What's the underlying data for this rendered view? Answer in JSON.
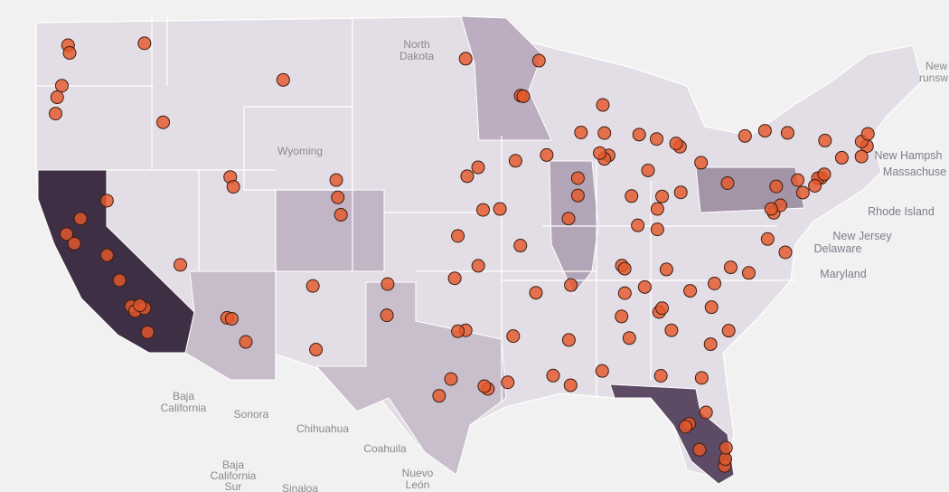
{
  "map": {
    "labels": [
      [
        "North",
        "Dakota"
      ],
      [
        "Wyoming"
      ],
      [
        "New Hampsh"
      ],
      [
        "Massachuse"
      ],
      [
        "Rhode Island"
      ],
      [
        "New Jersey"
      ],
      [
        "Delaware"
      ],
      [
        "Maryland"
      ],
      [
        "New",
        "runsw"
      ],
      [
        "Baja",
        "California"
      ],
      [
        "Sonora"
      ],
      [
        "Chihuahua"
      ],
      [
        "Coahuila"
      ],
      [
        "Baja",
        "California",
        "Sur"
      ],
      [
        "Nuevo",
        "León"
      ],
      [
        "Sinaloa"
      ]
    ],
    "locations": [
      {
        "lon": -122.3,
        "lat": 47.6
      },
      {
        "lon": -122.2,
        "lat": 47.2
      },
      {
        "lon": -122.7,
        "lat": 45.5
      },
      {
        "lon": -123.0,
        "lat": 44.9
      },
      {
        "lon": -117.4,
        "lat": 47.7
      },
      {
        "lon": -116.2,
        "lat": 43.6
      },
      {
        "lon": -123.1,
        "lat": 44.05
      },
      {
        "lon": -122.4,
        "lat": 37.8
      },
      {
        "lon": -121.9,
        "lat": 37.3
      },
      {
        "lon": -121.5,
        "lat": 38.6
      },
      {
        "lon": -119.8,
        "lat": 36.7
      },
      {
        "lon": -118.25,
        "lat": 34.05
      },
      {
        "lon": -118.0,
        "lat": 33.8
      },
      {
        "lon": -117.2,
        "lat": 32.7
      },
      {
        "lon": -117.4,
        "lat": 33.95
      },
      {
        "lon": -119.0,
        "lat": 35.4
      },
      {
        "lon": -117.7,
        "lat": 34.1
      },
      {
        "lon": -119.81,
        "lat": 39.53
      },
      {
        "lon": -115.1,
        "lat": 36.2
      },
      {
        "lon": -112.1,
        "lat": 33.45
      },
      {
        "lon": -111.8,
        "lat": 33.4
      },
      {
        "lon": -110.9,
        "lat": 32.2
      },
      {
        "lon": -111.9,
        "lat": 40.76
      },
      {
        "lon": -111.7,
        "lat": 40.25
      },
      {
        "lon": -105.0,
        "lat": 39.7
      },
      {
        "lon": -104.8,
        "lat": 38.8
      },
      {
        "lon": -105.1,
        "lat": 40.6
      },
      {
        "lon": -106.6,
        "lat": 35.1
      },
      {
        "lon": -106.4,
        "lat": 31.8
      },
      {
        "lon": -108.5,
        "lat": 45.8
      },
      {
        "lon": -96.8,
        "lat": 32.8
      },
      {
        "lon": -97.3,
        "lat": 32.75
      },
      {
        "lon": -95.37,
        "lat": 29.76
      },
      {
        "lon": -95.6,
        "lat": 29.9
      },
      {
        "lon": -98.5,
        "lat": 29.4
      },
      {
        "lon": -97.74,
        "lat": 30.27
      },
      {
        "lon": -101.85,
        "lat": 33.58
      },
      {
        "lon": -101.8,
        "lat": 35.2
      },
      {
        "lon": -94.1,
        "lat": 30.1
      },
      {
        "lon": -97.5,
        "lat": 35.5
      },
      {
        "lon": -95.99,
        "lat": 36.15
      },
      {
        "lon": -97.3,
        "lat": 37.7
      },
      {
        "lon": -94.6,
        "lat": 39.1
      },
      {
        "lon": -95.68,
        "lat": 39.05
      },
      {
        "lon": -96.0,
        "lat": 41.26
      },
      {
        "lon": -96.7,
        "lat": 40.8
      },
      {
        "lon": -96.8,
        "lat": 46.9
      },
      {
        "lon": -93.27,
        "lat": 44.98
      },
      {
        "lon": -93.1,
        "lat": 44.95
      },
      {
        "lon": -92.1,
        "lat": 46.8
      },
      {
        "lon": -93.6,
        "lat": 41.6
      },
      {
        "lon": -91.6,
        "lat": 41.9
      },
      {
        "lon": -93.29,
        "lat": 37.2
      },
      {
        "lon": -90.2,
        "lat": 38.6
      },
      {
        "lon": -87.63,
        "lat": 41.88
      },
      {
        "lon": -87.9,
        "lat": 41.7
      },
      {
        "lon": -88.2,
        "lat": 42.0
      },
      {
        "lon": -87.9,
        "lat": 43.04
      },
      {
        "lon": -89.4,
        "lat": 43.07
      },
      {
        "lon": -88.0,
        "lat": 44.5
      },
      {
        "lon": -89.6,
        "lat": 39.8
      },
      {
        "lon": -89.6,
        "lat": 40.7
      },
      {
        "lon": -83.05,
        "lat": 42.33
      },
      {
        "lon": -83.3,
        "lat": 42.5
      },
      {
        "lon": -85.67,
        "lat": 42.96
      },
      {
        "lon": -84.55,
        "lat": 42.73
      },
      {
        "lon": -86.16,
        "lat": 39.77
      },
      {
        "lon": -85.1,
        "lat": 41.1
      },
      {
        "lon": -83.0,
        "lat": 39.96
      },
      {
        "lon": -81.7,
        "lat": 41.5
      },
      {
        "lon": -84.5,
        "lat": 39.1
      },
      {
        "lon": -84.2,
        "lat": 39.75
      },
      {
        "lon": -80.0,
        "lat": 40.44
      },
      {
        "lon": -85.76,
        "lat": 38.25
      },
      {
        "lon": -84.5,
        "lat": 38.04
      },
      {
        "lon": -86.78,
        "lat": 36.16
      },
      {
        "lon": -86.6,
        "lat": 36.0
      },
      {
        "lon": -90.05,
        "lat": 35.15
      },
      {
        "lon": -92.29,
        "lat": 34.75
      },
      {
        "lon": -83.92,
        "lat": 35.96
      },
      {
        "lon": -85.31,
        "lat": 35.05
      },
      {
        "lon": -90.07,
        "lat": 29.95
      },
      {
        "lon": -91.19,
        "lat": 30.45
      },
      {
        "lon": -93.75,
        "lat": 32.5
      },
      {
        "lon": -90.18,
        "lat": 32.3
      },
      {
        "lon": -88.04,
        "lat": 30.69
      },
      {
        "lon": -86.8,
        "lat": 33.52
      },
      {
        "lon": -86.59,
        "lat": 34.73
      },
      {
        "lon": -86.3,
        "lat": 32.4
      },
      {
        "lon": -84.39,
        "lat": 33.75
      },
      {
        "lon": -84.2,
        "lat": 33.95
      },
      {
        "lon": -81.09,
        "lat": 32.08
      },
      {
        "lon": -83.6,
        "lat": 32.8
      },
      {
        "lon": -80.84,
        "lat": 35.23
      },
      {
        "lon": -78.64,
        "lat": 35.78
      },
      {
        "lon": -79.8,
        "lat": 36.07
      },
      {
        "lon": -81.03,
        "lat": 34.0
      },
      {
        "lon": -82.4,
        "lat": 34.85
      },
      {
        "lon": -79.93,
        "lat": 32.78
      },
      {
        "lon": -77.43,
        "lat": 37.54
      },
      {
        "lon": -76.29,
        "lat": 36.85
      },
      {
        "lon": -77.04,
        "lat": 38.9
      },
      {
        "lon": -76.61,
        "lat": 39.29
      },
      {
        "lon": -77.2,
        "lat": 39.1
      },
      {
        "lon": -75.17,
        "lat": 39.95
      },
      {
        "lon": -76.88,
        "lat": 40.27
      },
      {
        "lon": -75.5,
        "lat": 40.6
      },
      {
        "lon": -74.0,
        "lat": 40.71
      },
      {
        "lon": -74.2,
        "lat": 40.7
      },
      {
        "lon": -73.8,
        "lat": 40.9
      },
      {
        "lon": -74.4,
        "lat": 40.3
      },
      {
        "lon": -71.06,
        "lat": 42.36
      },
      {
        "lon": -71.4,
        "lat": 42.6
      },
      {
        "lon": -72.67,
        "lat": 41.76
      },
      {
        "lon": -71.41,
        "lat": 41.82
      },
      {
        "lon": -71.0,
        "lat": 43.0
      },
      {
        "lon": -78.88,
        "lat": 42.89
      },
      {
        "lon": -77.6,
        "lat": 43.16
      },
      {
        "lon": -73.75,
        "lat": 42.65
      },
      {
        "lon": -76.15,
        "lat": 43.05
      },
      {
        "lon": -81.66,
        "lat": 30.33
      },
      {
        "lon": -81.38,
        "lat": 28.54
      },
      {
        "lon": -82.46,
        "lat": 27.95
      },
      {
        "lon": -82.7,
        "lat": 27.8
      },
      {
        "lon": -80.19,
        "lat": 25.76
      },
      {
        "lon": -80.14,
        "lat": 26.12
      },
      {
        "lon": -80.1,
        "lat": 26.7
      },
      {
        "lon": -84.28,
        "lat": 30.44
      },
      {
        "lon": -81.8,
        "lat": 26.6
      }
    ]
  }
}
